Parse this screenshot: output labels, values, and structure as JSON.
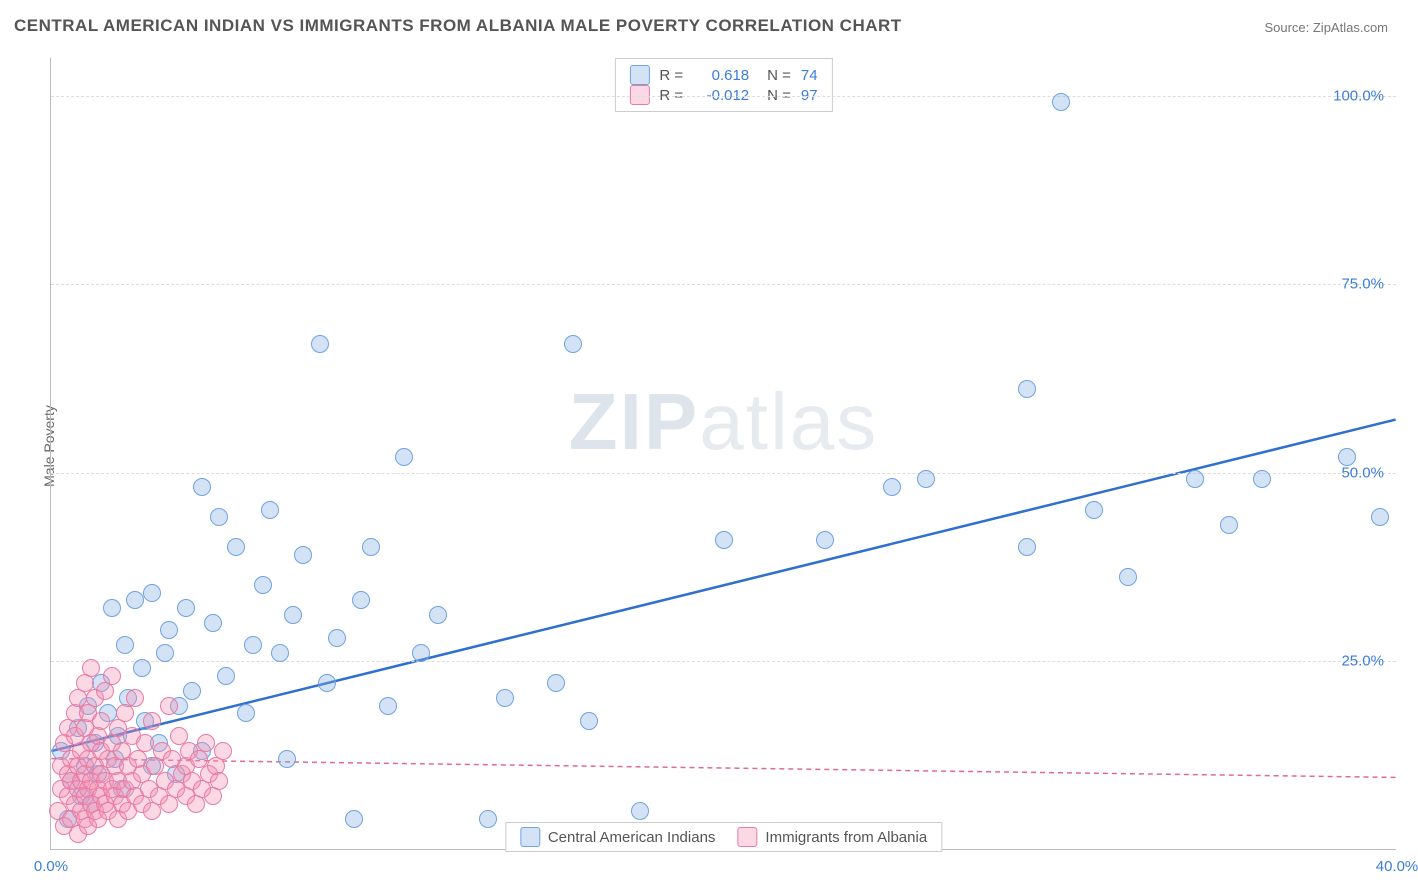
{
  "title": "CENTRAL AMERICAN INDIAN VS IMMIGRANTS FROM ALBANIA MALE POVERTY CORRELATION CHART",
  "source_label": "Source: ZipAtlas.com",
  "ylabel": "Male Poverty",
  "watermark": {
    "bold": "ZIP",
    "rest": "atlas"
  },
  "chart": {
    "type": "scatter",
    "xlim": [
      0,
      40
    ],
    "ylim": [
      0,
      105
    ],
    "yticks": [
      {
        "v": 25,
        "label": "25.0%"
      },
      {
        "v": 50,
        "label": "50.0%"
      },
      {
        "v": 75,
        "label": "75.0%"
      },
      {
        "v": 100,
        "label": "100.0%"
      }
    ],
    "xticks": [
      {
        "v": 0,
        "label": "0.0%"
      },
      {
        "v": 40,
        "label": "40.0%"
      }
    ],
    "grid_color": "#dddddd",
    "axis_color": "#bbbbbb",
    "background_color": "#ffffff",
    "marker_radius": 9,
    "marker_border_width": 1.2,
    "series": [
      {
        "key": "cai",
        "label": "Central American Indians",
        "fill": "rgba(132,173,230,0.35)",
        "stroke": "#6fa3de",
        "trend": {
          "x1": 0,
          "y1": 13,
          "x2": 40,
          "y2": 57,
          "color": "#2e6fd0",
          "width": 2.5,
          "dash": null
        },
        "R": "0.618",
        "N": "74",
        "points": [
          [
            0.3,
            13
          ],
          [
            0.5,
            4
          ],
          [
            0.6,
            9
          ],
          [
            0.8,
            16
          ],
          [
            0.9,
            7
          ],
          [
            1.0,
            11
          ],
          [
            1.1,
            19
          ],
          [
            1.2,
            6
          ],
          [
            1.3,
            14
          ],
          [
            1.4,
            10
          ],
          [
            1.5,
            22
          ],
          [
            1.7,
            18
          ],
          [
            1.8,
            32
          ],
          [
            1.9,
            12
          ],
          [
            2.0,
            15
          ],
          [
            2.1,
            8
          ],
          [
            2.2,
            27
          ],
          [
            2.3,
            20
          ],
          [
            2.5,
            33
          ],
          [
            2.7,
            24
          ],
          [
            2.8,
            17
          ],
          [
            3.0,
            11
          ],
          [
            3.0,
            34
          ],
          [
            3.2,
            14
          ],
          [
            3.4,
            26
          ],
          [
            3.5,
            29
          ],
          [
            3.7,
            10
          ],
          [
            3.8,
            19
          ],
          [
            4.0,
            32
          ],
          [
            4.2,
            21
          ],
          [
            4.5,
            48
          ],
          [
            4.5,
            13
          ],
          [
            4.8,
            30
          ],
          [
            5.0,
            44
          ],
          [
            5.2,
            23
          ],
          [
            5.5,
            40
          ],
          [
            5.8,
            18
          ],
          [
            6.0,
            27
          ],
          [
            6.3,
            35
          ],
          [
            6.5,
            45
          ],
          [
            6.8,
            26
          ],
          [
            7.0,
            12
          ],
          [
            7.2,
            31
          ],
          [
            7.5,
            39
          ],
          [
            8.0,
            67
          ],
          [
            8.2,
            22
          ],
          [
            8.5,
            28
          ],
          [
            9.0,
            4
          ],
          [
            9.2,
            33
          ],
          [
            9.5,
            40
          ],
          [
            10.0,
            19
          ],
          [
            10.5,
            52
          ],
          [
            11.0,
            26
          ],
          [
            11.5,
            31
          ],
          [
            13.0,
            4
          ],
          [
            13.5,
            20
          ],
          [
            15.0,
            22
          ],
          [
            15.5,
            67
          ],
          [
            16.0,
            17
          ],
          [
            17.5,
            5
          ],
          [
            20.0,
            41
          ],
          [
            23.0,
            41
          ],
          [
            25.0,
            48
          ],
          [
            26.0,
            49
          ],
          [
            29.0,
            40
          ],
          [
            29.0,
            61
          ],
          [
            30.0,
            99
          ],
          [
            31.0,
            45
          ],
          [
            32.0,
            36
          ],
          [
            34.0,
            49
          ],
          [
            35.0,
            43
          ],
          [
            36.0,
            49
          ],
          [
            38.5,
            52
          ],
          [
            39.5,
            44
          ]
        ]
      },
      {
        "key": "alb",
        "label": "Immigrants from Albania",
        "fill": "rgba(244,143,177,0.35)",
        "stroke": "#e87ba4",
        "trend": {
          "x1": 0,
          "y1": 12,
          "x2": 40,
          "y2": 9.5,
          "color": "#e06a95",
          "width": 1.5,
          "dash": "5,4"
        },
        "R": "-0.012",
        "N": "97",
        "points": [
          [
            0.2,
            5
          ],
          [
            0.3,
            8
          ],
          [
            0.3,
            11
          ],
          [
            0.4,
            3
          ],
          [
            0.4,
            14
          ],
          [
            0.5,
            7
          ],
          [
            0.5,
            10
          ],
          [
            0.5,
            16
          ],
          [
            0.6,
            4
          ],
          [
            0.6,
            9
          ],
          [
            0.6,
            12
          ],
          [
            0.7,
            6
          ],
          [
            0.7,
            15
          ],
          [
            0.7,
            18
          ],
          [
            0.8,
            2
          ],
          [
            0.8,
            8
          ],
          [
            0.8,
            11
          ],
          [
            0.8,
            20
          ],
          [
            0.9,
            5
          ],
          [
            0.9,
            9
          ],
          [
            0.9,
            13
          ],
          [
            1.0,
            4
          ],
          [
            1.0,
            7
          ],
          [
            1.0,
            10
          ],
          [
            1.0,
            16
          ],
          [
            1.0,
            22
          ],
          [
            1.1,
            3
          ],
          [
            1.1,
            8
          ],
          [
            1.1,
            12
          ],
          [
            1.1,
            18
          ],
          [
            1.2,
            6
          ],
          [
            1.2,
            9
          ],
          [
            1.2,
            14
          ],
          [
            1.2,
            24
          ],
          [
            1.3,
            5
          ],
          [
            1.3,
            11
          ],
          [
            1.3,
            20
          ],
          [
            1.4,
            4
          ],
          [
            1.4,
            8
          ],
          [
            1.4,
            15
          ],
          [
            1.5,
            7
          ],
          [
            1.5,
            10
          ],
          [
            1.5,
            13
          ],
          [
            1.5,
            17
          ],
          [
            1.6,
            6
          ],
          [
            1.6,
            9
          ],
          [
            1.6,
            21
          ],
          [
            1.7,
            5
          ],
          [
            1.7,
            12
          ],
          [
            1.8,
            8
          ],
          [
            1.8,
            14
          ],
          [
            1.8,
            23
          ],
          [
            1.9,
            7
          ],
          [
            1.9,
            11
          ],
          [
            2.0,
            4
          ],
          [
            2.0,
            9
          ],
          [
            2.0,
            16
          ],
          [
            2.1,
            6
          ],
          [
            2.1,
            13
          ],
          [
            2.2,
            8
          ],
          [
            2.2,
            18
          ],
          [
            2.3,
            5
          ],
          [
            2.3,
            11
          ],
          [
            2.4,
            9
          ],
          [
            2.4,
            15
          ],
          [
            2.5,
            7
          ],
          [
            2.5,
            20
          ],
          [
            2.6,
            12
          ],
          [
            2.7,
            6
          ],
          [
            2.7,
            10
          ],
          [
            2.8,
            14
          ],
          [
            2.9,
            8
          ],
          [
            3.0,
            5
          ],
          [
            3.0,
            17
          ],
          [
            3.1,
            11
          ],
          [
            3.2,
            7
          ],
          [
            3.3,
            13
          ],
          [
            3.4,
            9
          ],
          [
            3.5,
            6
          ],
          [
            3.5,
            19
          ],
          [
            3.6,
            12
          ],
          [
            3.7,
            8
          ],
          [
            3.8,
            15
          ],
          [
            3.9,
            10
          ],
          [
            4.0,
            7
          ],
          [
            4.0,
            11
          ],
          [
            4.1,
            13
          ],
          [
            4.2,
            9
          ],
          [
            4.3,
            6
          ],
          [
            4.4,
            12
          ],
          [
            4.5,
            8
          ],
          [
            4.6,
            14
          ],
          [
            4.7,
            10
          ],
          [
            4.8,
            7
          ],
          [
            4.9,
            11
          ],
          [
            5.0,
            9
          ],
          [
            5.1,
            13
          ]
        ]
      }
    ]
  },
  "stats_labels": {
    "R": "R =",
    "N": "N ="
  },
  "value_color": "#3b7dd8",
  "label_color": "#555555"
}
